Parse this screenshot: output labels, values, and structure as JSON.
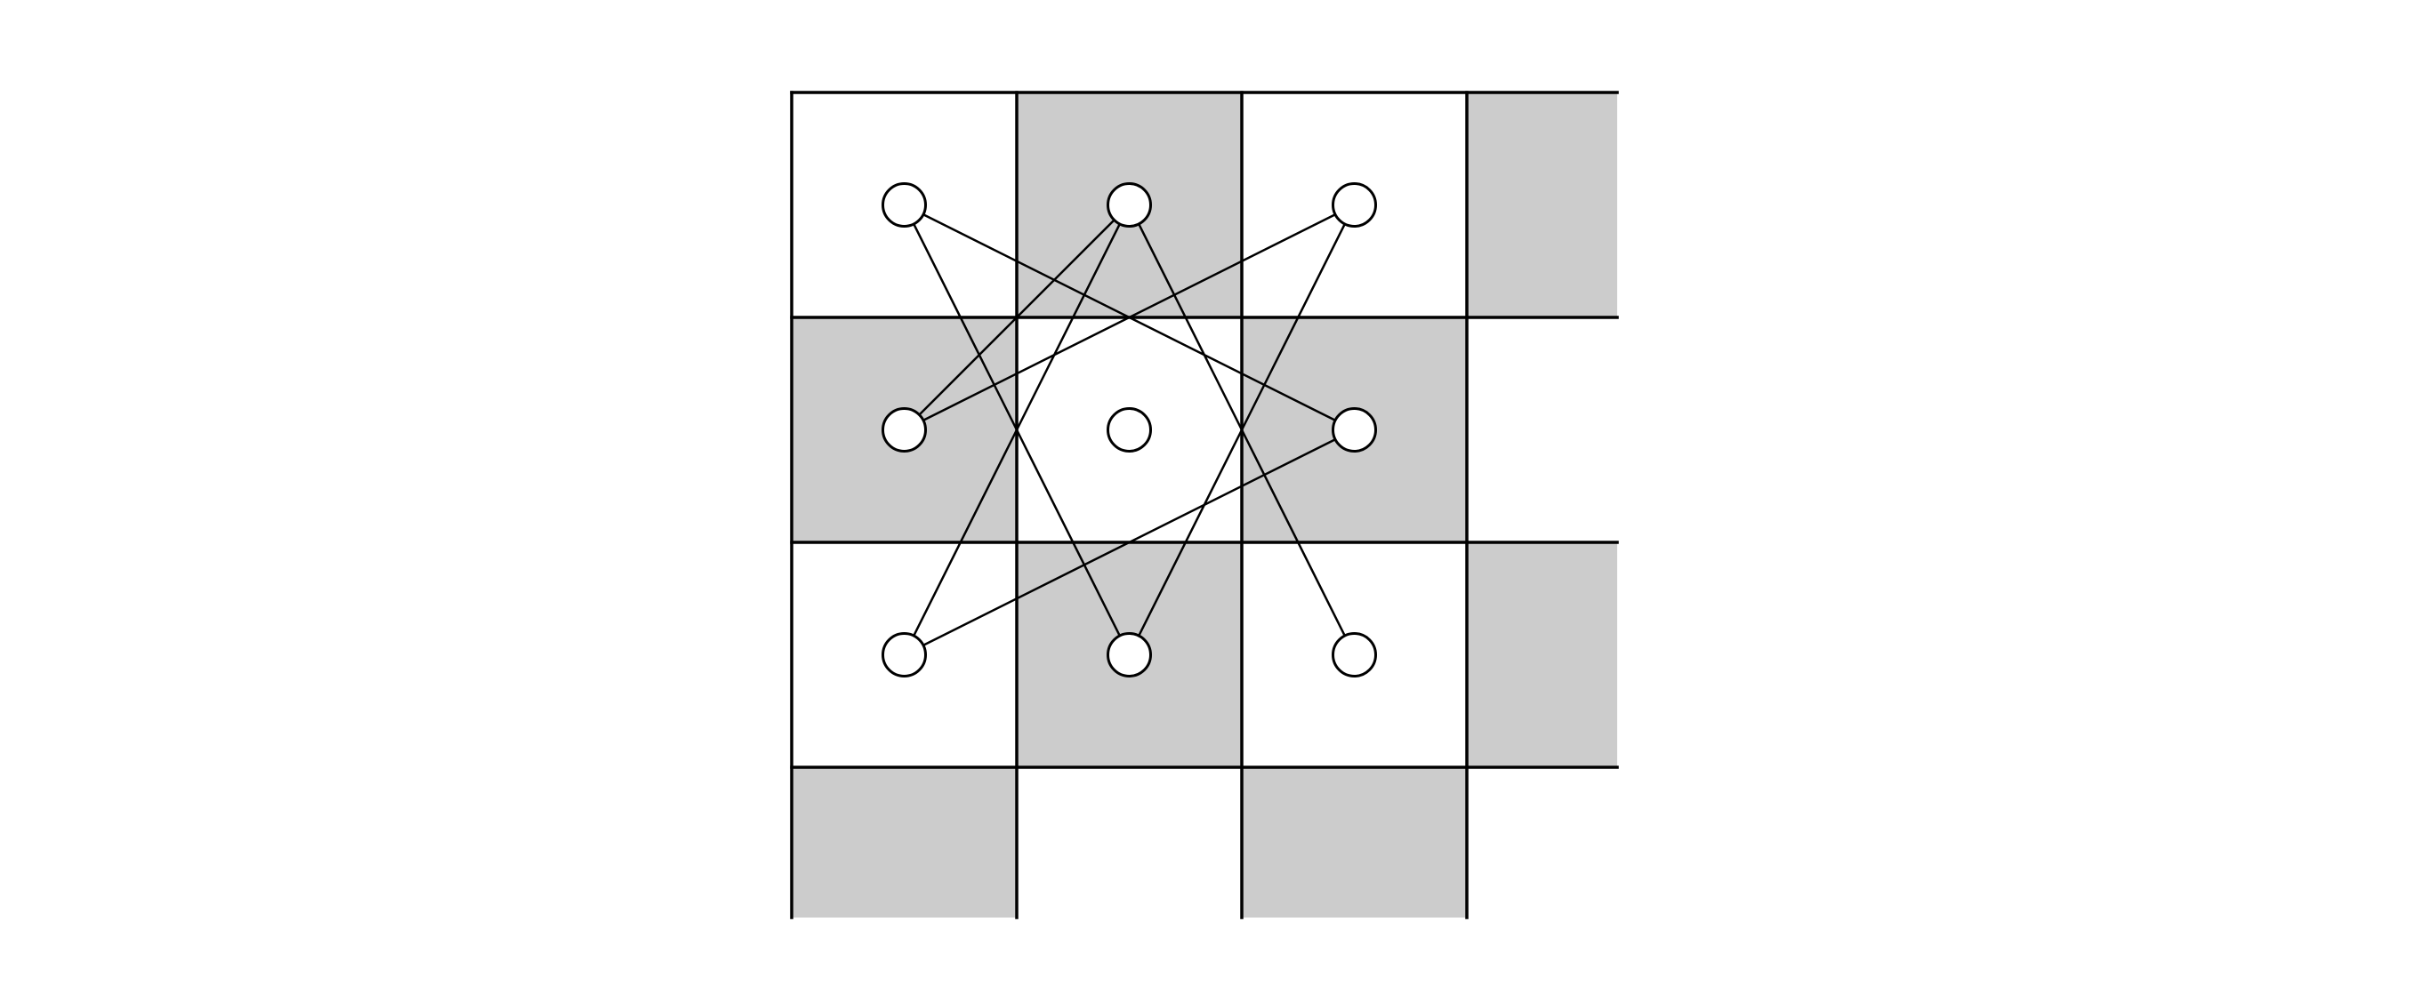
{
  "board": {
    "cells": [
      {
        "row": 0,
        "col": 0,
        "shade": "white"
      },
      {
        "row": 0,
        "col": 1,
        "shade": "gray"
      },
      {
        "row": 0,
        "col": 2,
        "shade": "white"
      },
      {
        "row": 0,
        "col": 3,
        "shade": "gray"
      },
      {
        "row": 1,
        "col": 0,
        "shade": "gray"
      },
      {
        "row": 1,
        "col": 1,
        "shade": "white"
      },
      {
        "row": 1,
        "col": 2,
        "shade": "gray"
      },
      {
        "row": 1,
        "col": 3,
        "shade": "white"
      },
      {
        "row": 2,
        "col": 0,
        "shade": "white"
      },
      {
        "row": 2,
        "col": 1,
        "shade": "gray"
      },
      {
        "row": 2,
        "col": 2,
        "shade": "white"
      },
      {
        "row": 2,
        "col": 3,
        "shade": "gray"
      },
      {
        "row": 3,
        "col": 0,
        "shade": "gray"
      },
      {
        "row": 3,
        "col": 1,
        "shade": "white"
      },
      {
        "row": 3,
        "col": 2,
        "shade": "gray"
      },
      {
        "row": 3,
        "col": 3,
        "shade": "white"
      }
    ],
    "colors": {
      "gray": "#cccccc",
      "white": "#ffffff",
      "line": "#000000"
    }
  },
  "nodes": [
    {
      "id": "a",
      "row": 0,
      "col": 0
    },
    {
      "id": "b",
      "row": 0,
      "col": 1
    },
    {
      "id": "c",
      "row": 0,
      "col": 2
    },
    {
      "id": "d",
      "row": 1,
      "col": 0
    },
    {
      "id": "center",
      "row": 1,
      "col": 1
    },
    {
      "id": "e",
      "row": 1,
      "col": 2
    },
    {
      "id": "f",
      "row": 2,
      "col": 0
    },
    {
      "id": "g",
      "row": 2,
      "col": 1
    },
    {
      "id": "h",
      "row": 2,
      "col": 2
    }
  ],
  "edges": [
    [
      "a",
      "e"
    ],
    [
      "a",
      "g"
    ],
    [
      "b",
      "d"
    ],
    [
      "b",
      "h"
    ],
    [
      "c",
      "d"
    ],
    [
      "c",
      "g"
    ],
    [
      "f",
      "b"
    ],
    [
      "f",
      "e"
    ]
  ]
}
